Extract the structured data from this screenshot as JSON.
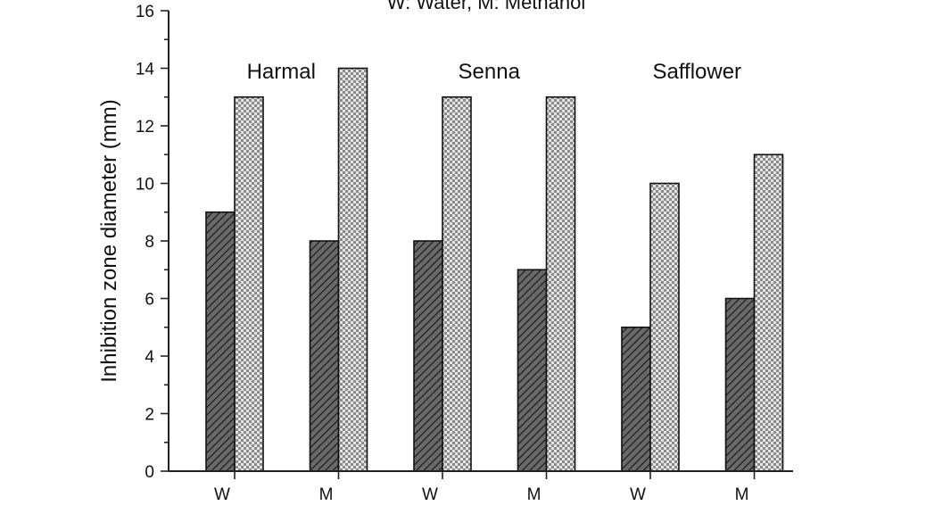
{
  "chart_data": {
    "type": "bar",
    "title": "",
    "note": "W: Water, M: Methanol",
    "ylabel": "Inhibition zone diameter (mm)",
    "xlabel": "",
    "ylim": [
      0,
      16
    ],
    "yticks": [
      0,
      2,
      4,
      6,
      8,
      10,
      12,
      14,
      16
    ],
    "categories": [
      "W",
      "M",
      "W",
      "M",
      "W",
      "M"
    ],
    "groups": [
      "Harmal",
      "Senna",
      "Safflower"
    ],
    "series": [
      {
        "values": [
          9,
          8,
          8,
          7,
          5,
          6
        ],
        "color": "#555555",
        "pattern": "diagonal-hatch"
      },
      {
        "values": [
          13,
          14,
          13,
          13,
          10,
          11
        ],
        "color": "#c8c8c8",
        "pattern": "checker"
      }
    ],
    "grid": false,
    "legend": "none"
  }
}
